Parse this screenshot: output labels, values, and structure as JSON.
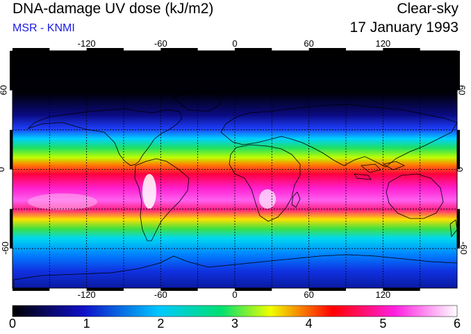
{
  "header": {
    "title": "DNA-damage UV dose (kJ/m2)",
    "source": "MSR - KNMI",
    "condition": "Clear-sky",
    "date": "17 January 1993"
  },
  "map": {
    "lon_ticks": [
      "-120",
      "-60",
      "0",
      "60",
      "120"
    ],
    "lon_values": [
      -120,
      -60,
      0,
      60,
      120
    ],
    "lat_ticks_left": [
      "60",
      "0",
      "-60"
    ],
    "lat_ticks_right": [
      "60",
      "0",
      "-60"
    ],
    "lat_values": [
      60,
      0,
      -60
    ],
    "lon_range": [
      -180,
      180
    ],
    "lat_range": [
      -90,
      90
    ],
    "grid_spacing": 30,
    "grid": true
  },
  "colorbar": {
    "labels": [
      "0",
      "1",
      "2",
      "3",
      "4",
      "5",
      "6"
    ],
    "range": [
      0,
      6
    ],
    "colors": [
      "#000000",
      "#1010c8",
      "#00c8ff",
      "#00e070",
      "#f0ff00",
      "#ff0000",
      "#ff20e0",
      "#ffffff"
    ]
  }
}
